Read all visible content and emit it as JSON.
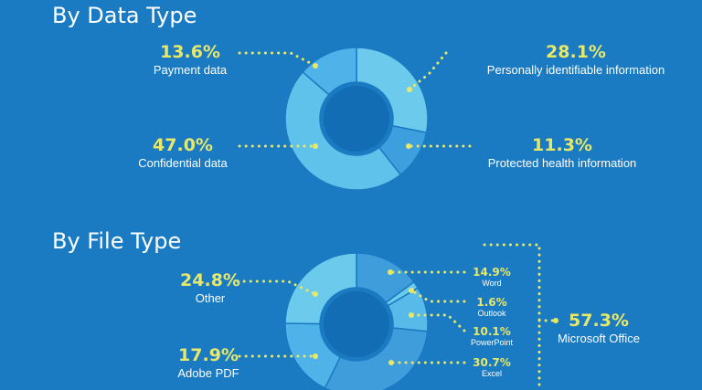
{
  "titles": {
    "data_type": "By Data Type",
    "file_type": "By File Type"
  },
  "colors": {
    "background": "#1a7ac2",
    "highlight": "#e7e86a",
    "dot_line": "#e7e86a",
    "text": "#ffffff"
  },
  "chart_data": [
    {
      "type": "pie",
      "variant": "donut",
      "title": "By Data Type",
      "slices": [
        {
          "label": "Personally identifiable information",
          "value": 28.1,
          "display": "28.1%",
          "color": "#6ccbec"
        },
        {
          "label": "Protected health information",
          "value": 11.3,
          "display": "11.3%",
          "color": "#3d9fdd"
        },
        {
          "label": "Confidential data",
          "value": 47.0,
          "display": "47.0%",
          "color": "#5ec2ea"
        },
        {
          "label": "Payment data",
          "value": 13.6,
          "display": "13.6%",
          "color": "#4fb2e8"
        }
      ]
    },
    {
      "type": "pie",
      "variant": "donut",
      "title": "By File Type",
      "slices": [
        {
          "label": "Word",
          "value": 14.9,
          "display": "14.9%",
          "color": "#3f9ddc"
        },
        {
          "label": "Outlook",
          "value": 1.6,
          "display": "1.6%",
          "color": "#6ccbec"
        },
        {
          "label": "PowerPoint",
          "value": 10.1,
          "display": "10.1%",
          "color": "#57bae9"
        },
        {
          "label": "Excel",
          "value": 30.7,
          "display": "30.7%",
          "color": "#3f9ddc"
        },
        {
          "label": "Adobe PDF",
          "value": 17.9,
          "display": "17.9%",
          "color": "#4fb2e8"
        },
        {
          "label": "Other",
          "value": 24.8,
          "display": "24.8%",
          "color": "#6ccbec"
        }
      ],
      "group": {
        "label": "Microsoft Office",
        "display": "57.3%"
      }
    }
  ]
}
